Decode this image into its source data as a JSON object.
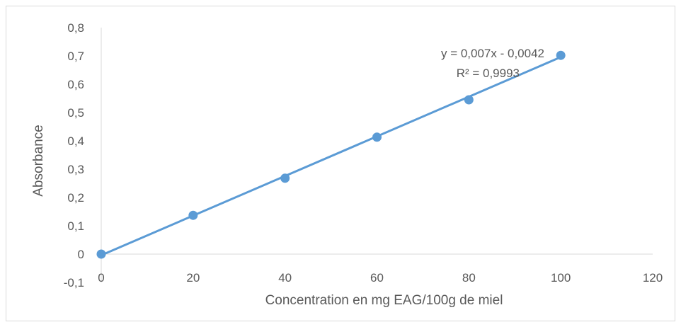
{
  "chart_data": {
    "type": "scatter",
    "title": "",
    "xlabel": "Concentration en mg EAG/100g de miel",
    "ylabel": "Absorbance",
    "xlim": [
      0,
      120
    ],
    "ylim": [
      -0.1,
      0.8
    ],
    "x_ticks": [
      "0",
      "20",
      "40",
      "60",
      "80",
      "100",
      "120"
    ],
    "y_ticks": [
      "-0,1",
      "0",
      "0,1",
      "0,2",
      "0,3",
      "0,4",
      "0,5",
      "0,6",
      "0,7",
      "0,8"
    ],
    "grid": false,
    "legend": "none",
    "series": [
      {
        "x": [
          0,
          20,
          40,
          60,
          80,
          100
        ],
        "y": [
          0,
          0.137,
          0.268,
          0.413,
          0.545,
          0.702
        ],
        "color": "#5b9bd5"
      }
    ],
    "trendline": {
      "type": "linear",
      "slope": 0.007,
      "intercept": -0.0042,
      "color": "#5b9bd5",
      "equation_label": "y = 0,007x - 0,0042",
      "r2_label": "R² = 0,9993"
    }
  }
}
